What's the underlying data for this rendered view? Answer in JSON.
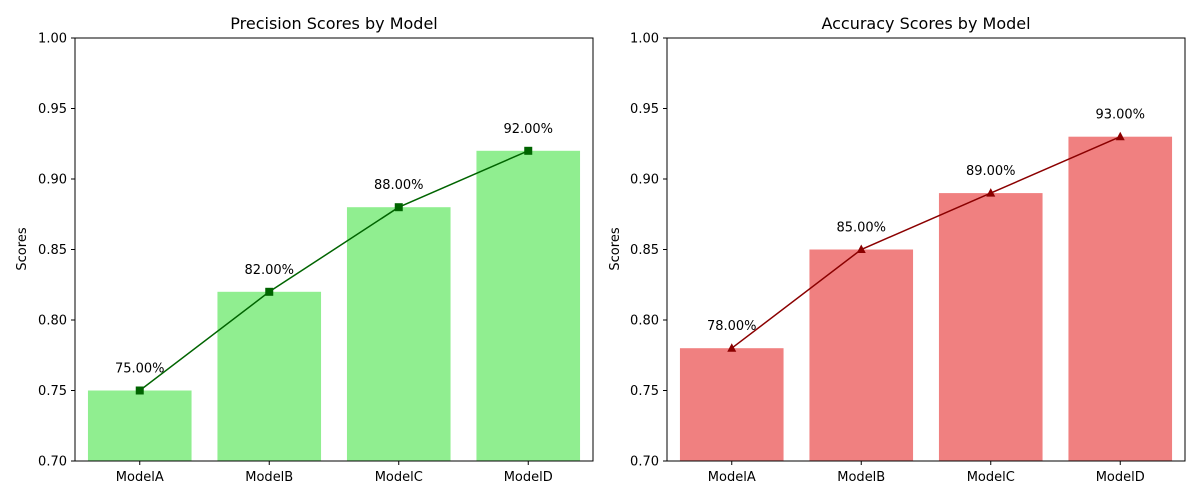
{
  "chart_data": [
    {
      "type": "bar",
      "title": "Precision Scores by Model",
      "xlabel": "",
      "ylabel": "Scores",
      "categories": [
        "ModelA",
        "ModelB",
        "ModelC",
        "ModelD"
      ],
      "values": [
        0.75,
        0.82,
        0.88,
        0.92
      ],
      "data_labels": [
        "75.00%",
        "82.00%",
        "88.00%",
        "92.00%"
      ],
      "ylim": [
        0.7,
        1.0
      ],
      "yticks": [
        "0.70",
        "0.75",
        "0.80",
        "0.85",
        "0.90",
        "0.95",
        "1.00"
      ],
      "bar_color": "#90ee90",
      "line_color": "#006400",
      "marker": "square",
      "grid": false
    },
    {
      "type": "bar",
      "title": "Accuracy Scores by Model",
      "xlabel": "",
      "ylabel": "Scores",
      "categories": [
        "ModelA",
        "ModelB",
        "ModelC",
        "ModelD"
      ],
      "values": [
        0.78,
        0.85,
        0.89,
        0.93
      ],
      "data_labels": [
        "78.00%",
        "85.00%",
        "89.00%",
        "93.00%"
      ],
      "ylim": [
        0.7,
        1.0
      ],
      "yticks": [
        "0.70",
        "0.75",
        "0.80",
        "0.85",
        "0.90",
        "0.95",
        "1.00"
      ],
      "bar_color": "#f08080",
      "line_color": "#8b0000",
      "marker": "triangle",
      "grid": false
    }
  ]
}
